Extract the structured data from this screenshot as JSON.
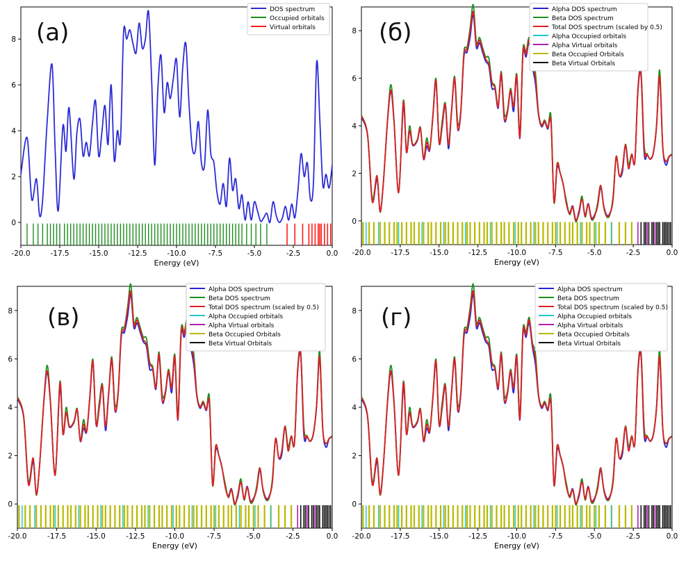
{
  "colors": {
    "dos": "#2b2bd6",
    "occupied": "#1e8c1e",
    "virtual": "#ff1a1a",
    "alpha_dos": "#2424d0",
    "beta_dos": "#1f8f1f",
    "total_dos": "#e02020",
    "alpha_occ": "#22c7c7",
    "alpha_virt": "#b01fb0",
    "beta_occ": "#b8b800",
    "beta_virt": "#111111"
  },
  "chart_data": [
    {
      "type": "line",
      "panel_label": "(а)",
      "xlabel": "Energy (eV)",
      "xlim": [
        -20.0,
        0.0
      ],
      "ylim": [
        -1.0,
        9.4
      ],
      "x_ticks": [
        "-20.0",
        "-17.5",
        "-15.0",
        "-12.5",
        "-10.0",
        "-7.5",
        "-5.0",
        "-2.5",
        "0.0"
      ],
      "y_ticks": [
        "0",
        "2",
        "4",
        "6",
        "8"
      ],
      "legend": [
        "DOS spectrum",
        "Occupied orbitals",
        "Virtual orbitals"
      ],
      "legend_position": "top-right",
      "series": [
        {
          "name": "DOS spectrum",
          "x": [
            -20,
            -19.6,
            -19.3,
            -19.0,
            -18.8,
            -18.6,
            -18.3,
            -18.0,
            -17.8,
            -17.6,
            -17.3,
            -17.1,
            -16.9,
            -16.6,
            -16.4,
            -16.2,
            -16.0,
            -15.8,
            -15.6,
            -15.4,
            -15.2,
            -15.0,
            -14.8,
            -14.6,
            -14.4,
            -14.2,
            -14.0,
            -13.8,
            -13.6,
            -13.4,
            -13.2,
            -13.0,
            -12.8,
            -12.6,
            -12.4,
            -12.2,
            -12.0,
            -11.8,
            -11.6,
            -11.4,
            -11.2,
            -11.0,
            -10.8,
            -10.6,
            -10.4,
            -10.2,
            -10.0,
            -9.8,
            -9.6,
            -9.4,
            -9.2,
            -9.0,
            -8.8,
            -8.6,
            -8.4,
            -8.2,
            -8.0,
            -7.8,
            -7.6,
            -7.4,
            -7.2,
            -7.0,
            -6.8,
            -6.6,
            -6.4,
            -6.2,
            -6.0,
            -5.8,
            -5.6,
            -5.4,
            -5.2,
            -5.0,
            -4.8,
            -4.6,
            -4.4,
            -4.2,
            -4.0,
            -3.8,
            -3.6,
            -3.4,
            -3.2,
            -3.0,
            -2.8,
            -2.6,
            -2.4,
            -2.2,
            -2.0,
            -1.8,
            -1.6,
            -1.4,
            -1.2,
            -1.0,
            -0.8,
            -0.6,
            -0.4,
            -0.2,
            0.0
          ],
          "y": [
            2.1,
            3.7,
            1.0,
            1.9,
            0.3,
            1.0,
            4.5,
            6.9,
            3.2,
            0.5,
            4.2,
            3.1,
            5.0,
            1.9,
            3.9,
            4.5,
            2.9,
            3.5,
            2.9,
            4.3,
            5.3,
            2.9,
            3.9,
            5.1,
            3.4,
            6.0,
            2.7,
            4.0,
            3.6,
            8.3,
            8.0,
            8.4,
            7.8,
            7.4,
            8.7,
            7.6,
            8.0,
            9.2,
            6.2,
            2.5,
            5.8,
            7.3,
            4.8,
            6.1,
            5.4,
            6.3,
            7.1,
            4.6,
            6.8,
            7.8,
            5.2,
            3.3,
            3.1,
            4.4,
            2.6,
            2.5,
            4.9,
            3.0,
            2.6,
            1.3,
            0.8,
            1.7,
            0.7,
            2.8,
            1.4,
            1.9,
            0.6,
            1.2,
            0.1,
            0.9,
            0.1,
            0.9,
            0.5,
            0.05,
            0.2,
            0.4,
            0.0,
            0.9,
            0.3,
            0.0,
            0.2,
            0.7,
            0.1,
            0.8,
            0.2,
            1.4,
            3.0,
            2.0,
            2.6,
            1.0,
            1.8,
            7.0,
            4.5,
            1.6,
            2.1,
            1.5,
            2.5
          ]
        }
      ]
    },
    {
      "type": "line",
      "panel_label": "(б)",
      "xlabel": "Energy (eV)",
      "xlim": [
        -20.0,
        0.0
      ],
      "ylim": [
        -1.0,
        9.0
      ],
      "x_ticks": [
        "-20.0",
        "-17.5",
        "-15.0",
        "-12.5",
        "-10.0",
        "-7.5",
        "-5.0",
        "-2.5",
        "0.0"
      ],
      "y_ticks": [
        "0",
        "2",
        "4",
        "6",
        "8"
      ],
      "legend": [
        "Alpha DOS spectrum",
        "Beta DOS spectrum",
        "Total DOS spectrum (scaled by 0.5)",
        "Alpha Occupied orbitals",
        "Alpha Virtual orbitals",
        "Beta Occupied Orbitals",
        "Beta Virtual Orbitals"
      ],
      "legend_position": "top-left"
    },
    {
      "type": "line",
      "panel_label": "(в)",
      "xlabel": "Energy (eV)",
      "xlim": [
        -20.0,
        0.0
      ],
      "ylim": [
        -1.0,
        9.0
      ],
      "x_ticks": [
        "-20.0",
        "-17.5",
        "-15.0",
        "-12.5",
        "-10.0",
        "-7.5",
        "-5.0",
        "-2.5",
        "0.0"
      ],
      "y_ticks": [
        "0",
        "2",
        "4",
        "6",
        "8"
      ],
      "legend": [
        "Alpha DOS spectrum",
        "Beta DOS spectrum",
        "Total DOS spectrum (scaled by 0.5)",
        "Alpha Occupied orbitals",
        "Alpha Virtual orbitals",
        "Beta Occupied Orbitals",
        "Beta Virtual Orbitals"
      ],
      "legend_position": "top-center"
    },
    {
      "type": "line",
      "panel_label": "(г)",
      "xlabel": "Energy (eV)",
      "xlim": [
        -20.0,
        0.0
      ],
      "ylim": [
        -1.0,
        9.0
      ],
      "x_ticks": [
        "-20.0",
        "-17.5",
        "-15.0",
        "-12.5",
        "-10.0",
        "-7.5",
        "-5.0",
        "-2.5",
        "0.0"
      ],
      "y_ticks": [
        "0",
        "2",
        "4",
        "6",
        "8"
      ],
      "legend": [
        "Alpha DOS spectrum",
        "Beta DOS spectrum",
        "Total DOS spectrum (scaled by 0.5)",
        "Alpha Occupied orbitals",
        "Alpha Virtual orbitals",
        "Beta Occupied Orbitals",
        "Beta Virtual Orbitals"
      ],
      "legend_position": "top-center"
    }
  ],
  "spin_total_dos": {
    "x": [
      -20,
      -19.6,
      -19.3,
      -19.0,
      -18.8,
      -18.6,
      -18.3,
      -18.1,
      -17.9,
      -17.6,
      -17.3,
      -17.1,
      -16.9,
      -16.7,
      -16.4,
      -16.2,
      -16.0,
      -15.8,
      -15.6,
      -15.4,
      -15.2,
      -15.0,
      -14.8,
      -14.6,
      -14.4,
      -14.2,
      -14.0,
      -13.8,
      -13.6,
      -13.4,
      -13.2,
      -13.0,
      -12.8,
      -12.6,
      -12.4,
      -12.2,
      -12.0,
      -11.8,
      -11.6,
      -11.4,
      -11.2,
      -11.0,
      -10.8,
      -10.6,
      -10.4,
      -10.2,
      -10.0,
      -9.8,
      -9.6,
      -9.4,
      -9.2,
      -9.0,
      -8.8,
      -8.6,
      -8.4,
      -8.2,
      -8.0,
      -7.8,
      -7.6,
      -7.4,
      -7.2,
      -7.0,
      -6.8,
      -6.6,
      -6.4,
      -6.2,
      -6.0,
      -5.8,
      -5.6,
      -5.4,
      -5.2,
      -5.0,
      -4.8,
      -4.6,
      -4.4,
      -4.2,
      -4.0,
      -3.8,
      -3.6,
      -3.4,
      -3.2,
      -3.0,
      -2.8,
      -2.6,
      -2.4,
      -2.2,
      -2.0,
      -1.8,
      -1.6,
      -1.4,
      -1.2,
      -1.0,
      -0.8,
      -0.6,
      -0.4,
      -0.2,
      0.0
    ],
    "y": [
      4.4,
      3.6,
      0.8,
      1.9,
      0.4,
      1.5,
      4.4,
      5.5,
      4.2,
      1.2,
      5.0,
      2.9,
      3.8,
      3.2,
      3.4,
      3.9,
      2.6,
      3.3,
      3.0,
      4.4,
      5.9,
      3.3,
      4.0,
      4.9,
      3.2,
      4.6,
      6.0,
      3.9,
      4.6,
      7.0,
      7.2,
      8.0,
      8.8,
      7.4,
      7.6,
      7.2,
      6.8,
      6.6,
      5.8,
      5.6,
      4.8,
      6.2,
      4.3,
      4.6,
      5.5,
      4.8,
      6.1,
      3.5,
      7.1,
      7.0,
      7.6,
      6.6,
      6.0,
      4.5,
      4.0,
      4.2,
      3.9,
      4.2,
      0.8,
      2.4,
      2.0,
      1.5,
      0.7,
      0.3,
      0.6,
      0.0,
      0.4,
      0.9,
      0.2,
      0.7,
      0.1,
      0.2,
      0.6,
      1.5,
      0.6,
      0.2,
      0.3,
      0.9,
      2.7,
      1.9,
      2.2,
      3.2,
      2.2,
      2.8,
      2.5,
      5.5,
      6.2,
      3.0,
      2.8,
      2.6,
      2.9,
      4.0,
      6.1,
      3.1,
      2.5,
      2.7,
      2.8
    ]
  },
  "rugs": {
    "a_occupied": [
      -19.6,
      -19.2,
      -18.9,
      -18.6,
      -18.3,
      -18.1,
      -17.9,
      -17.7,
      -17.5,
      -17.2,
      -17.0,
      -16.8,
      -16.6,
      -16.4,
      -16.2,
      -16.0,
      -15.8,
      -15.6,
      -15.4,
      -15.2,
      -15.0,
      -14.8,
      -14.6,
      -14.4,
      -14.2,
      -14.0,
      -13.8,
      -13.6,
      -13.4,
      -13.2,
      -13.0,
      -12.8,
      -12.6,
      -12.4,
      -12.2,
      -12.0,
      -11.8,
      -11.6,
      -11.4,
      -11.2,
      -11.0,
      -10.8,
      -10.6,
      -10.4,
      -10.2,
      -10.0,
      -9.8,
      -9.6,
      -9.4,
      -9.2,
      -9.0,
      -8.8,
      -8.6,
      -8.4,
      -8.2,
      -8.0,
      -7.8,
      -7.6,
      -7.4,
      -7.2,
      -7.0,
      -6.8,
      -6.6,
      -6.4,
      -6.2,
      -6.0,
      -5.8,
      -5.5,
      -5.2,
      -4.9,
      -4.6,
      -4.2
    ],
    "a_virtual": [
      -2.9,
      -2.4,
      -1.9,
      -1.5,
      -1.3,
      -1.1,
      -0.9,
      -0.8,
      -0.7,
      -0.5,
      -0.3,
      -0.1
    ],
    "spin_alpha_occ": [
      -19.7,
      -18.9,
      -17.6,
      -16.1,
      -14.7,
      -13.3,
      -11.7,
      -10.1,
      -8.9,
      -7.4,
      -5.9,
      -4.9,
      -3.9
    ],
    "spin_beta_occ": [
      -19.9,
      -19.5,
      -19.2,
      -18.8,
      -18.5,
      -18.2,
      -17.9,
      -17.7,
      -17.4,
      -17.1,
      -16.8,
      -16.6,
      -16.3,
      -16.0,
      -15.7,
      -15.5,
      -15.2,
      -14.9,
      -14.6,
      -14.4,
      -14.1,
      -13.8,
      -13.5,
      -13.2,
      -13.0,
      -12.7,
      -12.4,
      -12.1,
      -11.9,
      -11.6,
      -11.3,
      -11.0,
      -10.8,
      -10.5,
      -10.2,
      -9.9,
      -9.7,
      -9.4,
      -9.1,
      -8.8,
      -8.6,
      -8.3,
      -8.0,
      -7.7,
      -7.5,
      -7.2,
      -6.9,
      -6.6,
      -6.4,
      -6.1,
      -5.8,
      -5.5,
      -5.3,
      -5.0,
      -4.7,
      -4.3,
      -3.9,
      -3.4,
      -3.0,
      -2.6
    ],
    "spin_alpha_virt": [
      -2.2,
      -1.6,
      -1.1,
      -0.6
    ],
    "spin_beta_virt": [
      -2.0,
      -1.8,
      -1.7,
      -1.5,
      -1.3,
      -1.2,
      -1.0,
      -0.9,
      -0.8,
      -0.6,
      -0.5,
      -0.4,
      -0.3,
      -0.2,
      -0.1
    ]
  }
}
